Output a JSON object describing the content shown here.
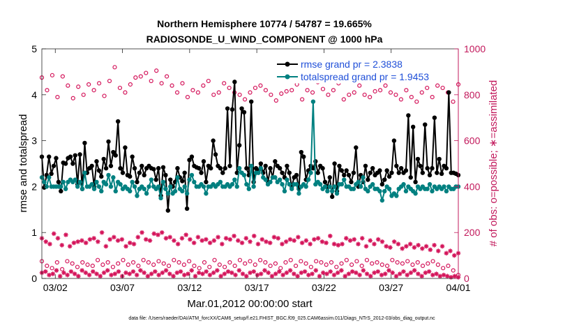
{
  "chart_data": {
    "type": "line",
    "title_line1": "Northern Hemisphere 10774 / 54787 = 19.665%",
    "title_line2": "RADIOSONDE_U_WIND_COMPONENT @ 1000 hPa",
    "xlabel": "Mar.01,2012 00:00:00 start",
    "ylabel_left": "rmse and totalspread",
    "ylabel_right": "# of obs: o=possible; ∗=assimilated",
    "footer": "data file: /Users/raeder/DAI/ATM_forcXX/CAM6_setup/f.e21.FHIST_BGC.f09_025.CAM6assim.011/Diags_NTrS_2012-03/obs_diag_output.nc",
    "xlim": [
      1.0,
      32.0
    ],
    "ylim_left": [
      0,
      5
    ],
    "ylim_right": [
      0,
      1000
    ],
    "x_ticks": [
      2,
      7,
      12,
      17,
      22,
      27,
      32
    ],
    "x_tick_labels": [
      "03/02",
      "03/07",
      "03/12",
      "03/17",
      "03/22",
      "03/27",
      "04/01"
    ],
    "y_left_ticks": [
      0,
      1,
      2,
      3,
      4,
      5
    ],
    "y_left_tick_labels": [
      "0",
      "1",
      "2",
      "3",
      "4",
      "5"
    ],
    "y_right_ticks": [
      0,
      200,
      400,
      600,
      800,
      1000
    ],
    "y_right_tick_labels": [
      "0",
      "200",
      "400",
      "600",
      "800",
      "1000"
    ],
    "legend_position": "top-right",
    "colors": {
      "rmse": "#000000",
      "spread": "#008080",
      "obs": "#d4145a",
      "axis_right": "#c2185b",
      "legend_text": "#1f4fd8"
    },
    "series": [
      {
        "name": "rmse grand pr = 2.3838",
        "key": "rmse",
        "values": [
          2.65,
          1.98,
          2.25,
          2.65,
          2.28,
          2.45,
          2.62,
          2.1,
          1.9,
          2.52,
          2.5,
          2.62,
          2.65,
          2.5,
          2.68,
          2.05,
          2.7,
          1.95,
          2.95,
          2.3,
          2.4,
          2.45,
          2.0,
          2.55,
          2.35,
          2.22,
          2.6,
          2.4,
          2.98,
          2.45,
          2.75,
          2.68,
          3.42,
          2.4,
          2.3,
          2.85,
          2.25,
          2.22,
          2.65,
          2.4,
          2.1,
          2.3,
          2.45,
          2.25,
          2.4,
          2.45,
          2.4,
          2.38,
          2.15,
          2.4,
          1.8,
          2.42,
          2.25,
          1.48,
          2.15,
          2.0,
          2.1,
          2.4,
          2.2,
          2.12,
          2.3,
          1.52,
          2.58,
          2.65,
          2.45,
          2.42,
          2.4,
          2.3,
          2.55,
          2.1,
          2.45,
          2.4,
          3.0,
          2.7,
          2.45,
          2.4,
          2.3,
          2.4,
          3.7,
          2.45,
          3.68,
          4.28,
          2.3,
          2.9,
          3.7,
          3.62,
          2.4,
          2.25,
          3.85,
          2.1,
          2.4,
          2.35,
          2.5,
          2.3,
          2.45,
          2.1,
          2.4,
          2.2,
          2.55,
          2.45,
          2.4,
          2.3,
          2.2,
          2.45,
          2.3,
          2.0,
          2.2,
          2.25,
          1.95,
          2.75,
          2.65,
          2.15,
          2.35,
          2.45,
          2.4,
          2.55,
          2.3,
          2.45,
          2.4,
          2.1,
          2.0,
          2.2,
          1.78,
          2.5,
          1.9,
          2.45,
          2.35,
          2.25,
          2.35,
          2.25,
          2.1,
          2.3,
          2.85,
          2.0,
          2.25,
          2.1,
          2.45,
          2.15,
          2.3,
          2.4,
          2.25,
          2.3,
          2.35,
          2.05,
          2.15,
          2.35,
          2.22,
          2.3,
          3.0,
          2.45,
          2.3,
          2.4,
          2.3,
          2.35,
          3.55,
          2.2,
          3.3,
          2.1,
          2.6,
          2.45,
          2.3,
          3.35,
          2.4,
          2.25,
          2.4,
          3.5,
          2.3,
          2.6,
          2.28,
          2.45,
          2.4,
          4.05,
          2.3,
          2.3,
          2.28,
          2.25
        ]
      },
      {
        "name": "totalspread grand pr = 1.9453",
        "key": "spread",
        "values": [
          2.2,
          2.1,
          2.0,
          2.2,
          2.0,
          2.0,
          2.0,
          2.0,
          2.0,
          2.1,
          1.95,
          2.1,
          2.15,
          2.1,
          2.15,
          2.0,
          2.1,
          1.95,
          2.3,
          2.0,
          2.0,
          2.05,
          1.95,
          2.1,
          2.0,
          1.9,
          2.1,
          2.05,
          2.25,
          2.0,
          2.2,
          1.9,
          2.1,
          2.05,
          1.95,
          2.0,
          1.95,
          1.9,
          2.1,
          2.0,
          1.8,
          1.95,
          2.0,
          1.95,
          1.85,
          2.0,
          2.15,
          2.0,
          1.95,
          2.0,
          1.75,
          2.1,
          1.95,
          1.85,
          2.0,
          1.85,
          1.9,
          2.2,
          1.95,
          1.9,
          2.0,
          1.85,
          2.15,
          2.25,
          2.1,
          2.0,
          2.0,
          2.05,
          2.0,
          1.85,
          2.0,
          2.0,
          2.05,
          2.0,
          2.05,
          2.1,
          2.0,
          2.0,
          2.05,
          2.0,
          2.05,
          2.15,
          2.0,
          2.4,
          2.3,
          2.25,
          2.05,
          1.95,
          2.45,
          2.0,
          2.3,
          2.3,
          2.4,
          2.2,
          2.15,
          2.05,
          2.1,
          2.2,
          2.2,
          2.1,
          2.15,
          2.05,
          1.9,
          2.15,
          2.05,
          1.95,
          2.05,
          2.05,
          1.85,
          2.0,
          2.05,
          2.0,
          2.15,
          2.3,
          3.85,
          2.05,
          2.1,
          2.05,
          1.95,
          2.0,
          1.9,
          2.0,
          1.9,
          2.0,
          1.85,
          2.05,
          2.05,
          2.15,
          2.0,
          2.0,
          1.95,
          1.95,
          2.05,
          2.1,
          2.0,
          2.2,
          1.95,
          1.9,
          2.0,
          2.05,
          1.95,
          1.95,
          1.9,
          1.7,
          1.9,
          2.0,
          1.95,
          1.8,
          1.85,
          1.8,
          1.95,
          2.0,
          2.05,
          1.9,
          2.0,
          1.95,
          1.9,
          1.85,
          2.0,
          1.95,
          2.0,
          1.95,
          1.95,
          2.05,
          1.9,
          2.0,
          1.95,
          2.0,
          1.95,
          2.0,
          1.9,
          2.0,
          1.95,
          1.95,
          2.0,
          2.0
        ]
      }
    ],
    "obs_possible_high": [
      875,
      820,
      885,
      790,
      880,
      840,
      785,
      835,
      800,
      845,
      820,
      850,
      795,
      860,
      920,
      830,
      810,
      845,
      875,
      880,
      895,
      860,
      905,
      850,
      880,
      840,
      810,
      850,
      790,
      820,
      810,
      840,
      860,
      800,
      810,
      850,
      830,
      810,
      800,
      780,
      810,
      830,
      840,
      820,
      800,
      775,
      805,
      815,
      820,
      845,
      780,
      820,
      810,
      855,
      825,
      800,
      820,
      850,
      780,
      800,
      810,
      840,
      800,
      790,
      815,
      820,
      840,
      810,
      800,
      780,
      820,
      790,
      770,
      810,
      830,
      790,
      840,
      830,
      810,
      770,
      845
    ],
    "obs_possible_low": [
      75,
      55,
      45,
      70,
      40,
      75,
      65,
      50,
      70,
      60,
      55,
      80,
      60,
      70,
      50,
      65,
      80,
      60,
      70,
      55,
      80,
      70,
      60,
      75,
      65,
      55,
      80,
      70,
      60,
      75,
      55,
      45,
      70,
      50,
      80,
      60,
      50,
      70,
      55,
      80,
      65,
      75,
      60,
      80,
      70,
      55,
      65,
      45,
      70,
      80,
      55,
      75,
      65,
      50,
      75,
      70,
      60,
      70,
      50,
      65,
      80,
      60,
      75,
      55,
      80,
      65,
      70,
      60,
      55,
      80,
      70,
      65,
      75,
      60,
      70,
      55,
      65,
      75,
      60,
      45,
      55,
      35,
      15
    ],
    "obs_assim_high": [
      175,
      160,
      150,
      195,
      175,
      145,
      190,
      140,
      155,
      160,
      165,
      155,
      170,
      175,
      160,
      200,
      140,
      170,
      180,
      165,
      170,
      140,
      155,
      150,
      180,
      200,
      170,
      165,
      195,
      190,
      200,
      175,
      180,
      165,
      150,
      175,
      190,
      170,
      155,
      180,
      165,
      170,
      155,
      165,
      180,
      150,
      175,
      170,
      185,
      165,
      155,
      175,
      160,
      185,
      150,
      170,
      160,
      155,
      180,
      175,
      150,
      160,
      170,
      165,
      180,
      155,
      165,
      150,
      170,
      175,
      160,
      155,
      185,
      150,
      145,
      150,
      175,
      165,
      170,
      150,
      175,
      140,
      165,
      150,
      170,
      160,
      140,
      135,
      160,
      150,
      130,
      140,
      150,
      135,
      145,
      130,
      140,
      125,
      145,
      120,
      140,
      110,
      120,
      100,
      110
    ],
    "obs_assim_low": [
      25,
      30,
      15,
      20,
      35,
      10,
      25,
      15,
      30,
      20,
      10,
      35,
      25,
      15,
      30,
      20,
      10,
      25,
      35,
      15,
      20,
      30,
      10,
      25,
      20,
      30,
      15,
      35,
      25,
      10,
      20,
      30,
      15,
      25,
      35,
      20,
      10,
      25,
      30,
      15,
      20,
      35,
      10,
      25,
      20,
      30,
      15,
      25,
      35,
      10,
      20,
      30,
      25,
      15,
      35,
      20,
      10,
      25,
      30,
      15,
      20,
      35,
      25,
      10,
      20,
      30,
      15,
      25,
      35,
      20,
      10,
      25,
      30,
      15,
      20,
      35,
      10,
      25,
      20,
      30,
      15,
      25,
      35,
      10,
      20,
      30,
      25,
      15,
      35,
      20,
      10,
      25,
      30,
      15,
      20,
      35,
      25,
      10,
      20,
      30,
      15,
      25,
      35,
      20,
      10,
      25,
      30,
      15,
      20,
      10,
      15,
      10,
      5,
      10,
      5
    ]
  }
}
